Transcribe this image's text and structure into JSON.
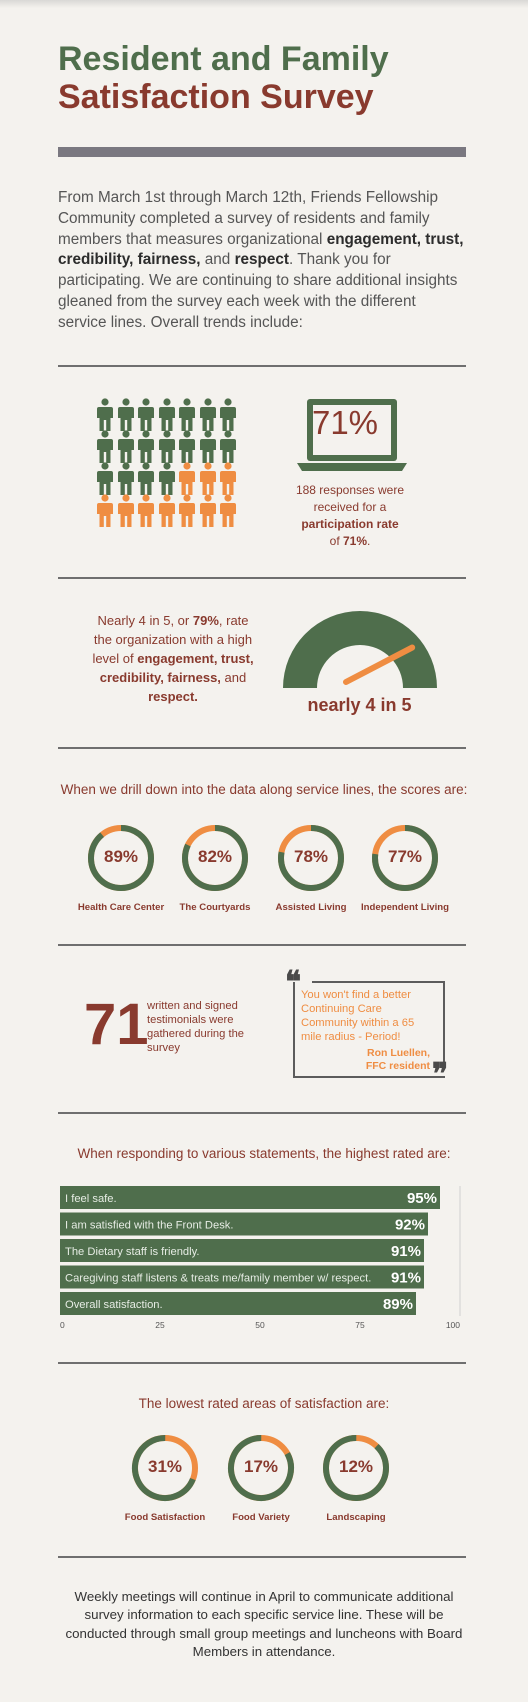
{
  "title": {
    "line1": "Resident and Family",
    "line2": "Satisfaction Survey"
  },
  "intro": {
    "p1": "From March 1st through March 12th, Friends Fellowship Community completed a survey of residents and family members that measures organizational ",
    "b1": "engagement, trust, credibility, fairness,",
    "p2": " and ",
    "b2": "respect",
    "p3": ". Thank you for participating. We are continuing to share additional insights gleaned from the survey each week with the different service lines. Overall trends include:"
  },
  "participation": {
    "percent": "71%",
    "people_total": 28,
    "people_highlighted": 8,
    "text1": "188 responses were received for a",
    "bold": "participation rate",
    "text2": "of ",
    "bold2": "71%",
    "text3": "."
  },
  "engagement": {
    "t1": "Nearly 4 in 5, or ",
    "b1": "79%",
    "t2": ", rate the organization with a high level of",
    "b2": "engagement, trust, credibility, fairness,",
    "t3": "and ",
    "b3": "respect.",
    "gauge_label": "nearly 4 in 5",
    "gauge_value": 0.79
  },
  "service_lines": {
    "heading": "When we drill down into the data along service lines, the scores are:",
    "items": [
      {
        "label": "Health Care Center",
        "value": "89%",
        "fraction": 0.89
      },
      {
        "label": "The Courtyards",
        "value": "82%",
        "fraction": 0.82
      },
      {
        "label": "Assisted Living",
        "value": "78%",
        "fraction": 0.78
      },
      {
        "label": "Independent Living",
        "value": "77%",
        "fraction": 0.77
      }
    ]
  },
  "testimonials": {
    "count": "71",
    "text": "written and signed testimonials were gathered during the survey",
    "quote": "You won't find a better Continuing Care Community within a 65 mile radius - Period!",
    "author": "Ron Luellen,",
    "author_role": "FFC resident"
  },
  "statements": {
    "heading": "When responding to various statements, the highest rated are:"
  },
  "chart_data": {
    "type": "bar",
    "orientation": "horizontal",
    "categories": [
      "I feel safe.",
      "I am satisfied with the Front Desk.",
      "The Dietary staff is friendly.",
      "Caregiving staff listens & treats me/family member w/ respect.",
      "Overall satisfaction."
    ],
    "values": [
      95,
      92,
      91,
      91,
      89
    ],
    "value_labels": [
      "95%",
      "92%",
      "91%",
      "91%",
      "89%"
    ],
    "xlim": [
      0,
      100
    ],
    "xticks": [
      "0",
      "25",
      "50",
      "75",
      "100"
    ],
    "bar_color": "#4f6e4c"
  },
  "lowest": {
    "heading": "The lowest rated areas of satisfaction are:",
    "items": [
      {
        "label": "Food Satisfaction",
        "value": "31%",
        "fraction": 0.31
      },
      {
        "label": "Food Variety",
        "value": "17%",
        "fraction": 0.17
      },
      {
        "label": "Landscaping",
        "value": "12%",
        "fraction": 0.12
      }
    ]
  },
  "closing": "Weekly meetings will continue in April to communicate additional survey information to each specific service line. These will be conducted through small group meetings and luncheons with Board Members in attendance.",
  "colors": {
    "green": "#4f6e4c",
    "red": "#893a2e",
    "orange": "#ef8d42",
    "gray": "#7a7880"
  }
}
